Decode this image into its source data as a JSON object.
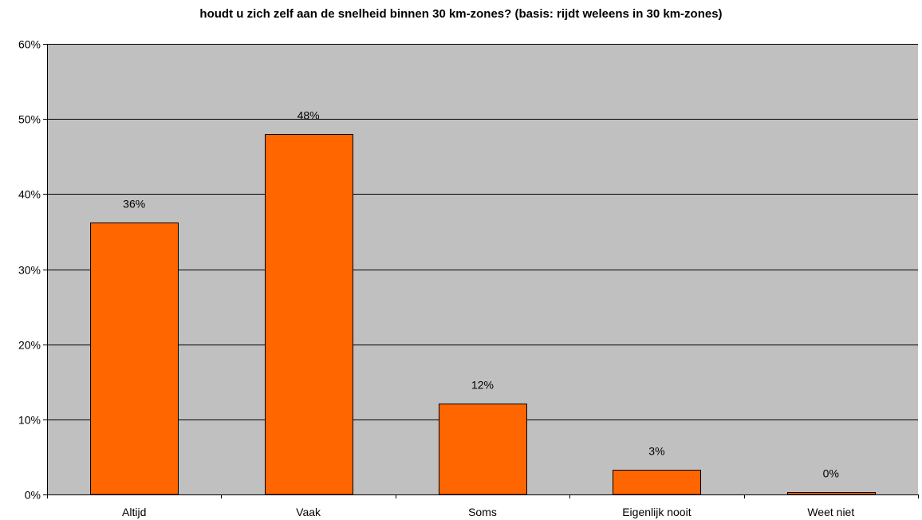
{
  "chart_data": {
    "type": "bar",
    "title": "houdt u zich zelf aan de snelheid binnen 30 km-zones? (basis: rijdt weleens in 30 km-zones)",
    "xlabel": "",
    "ylabel": "",
    "categories": [
      "Altijd",
      "Vaak",
      "Soms",
      "Eigenlijk nooit",
      "Weet niet"
    ],
    "values": [
      36.2,
      48.0,
      12.1,
      3.3,
      0.3
    ],
    "data_labels": [
      "36%",
      "48%",
      "12%",
      "3%",
      "0%"
    ],
    "ylim": [
      0,
      60
    ],
    "yticks": [
      0,
      10,
      20,
      30,
      40,
      50,
      60
    ],
    "ytick_labels": [
      "0%",
      "10%",
      "20%",
      "30%",
      "40%",
      "50%",
      "60%"
    ],
    "grid": true,
    "legend": "none",
    "colors": {
      "bar": "#FF6600",
      "plot_background": "#C0C0C0",
      "gridline": "#000000"
    }
  }
}
